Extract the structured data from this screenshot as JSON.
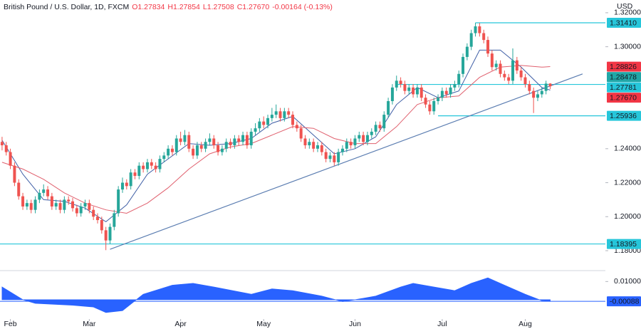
{
  "chart_data": [
    {
      "type": "candlestick",
      "symbol": "British Pound / U.S. Dollar, 1D, FXCM",
      "legend_text": {
        "open": "O1.27834",
        "high": "H1.27854",
        "low": "L1.27508",
        "close": "C1.27670",
        "change": "-0.00164 (-0.13%)"
      },
      "axis_unit": "USD",
      "up_color": "#26a69a",
      "down_color": "#ef5350",
      "xlim": [
        -0.5,
        145.3
      ],
      "ylim": [
        1.1691,
        1.3275
      ],
      "xticks": [
        {
          "value": 2,
          "label": "Feb"
        },
        {
          "value": 21,
          "label": "Mar"
        },
        {
          "value": 43,
          "label": "Apr"
        },
        {
          "value": 63,
          "label": "May"
        },
        {
          "value": 85,
          "label": "Jun"
        },
        {
          "value": 106,
          "label": "Jul"
        },
        {
          "value": 126,
          "label": "Aug"
        }
      ],
      "yticks": [
        {
          "value": 1.32,
          "label": "1.32000"
        },
        {
          "value": 1.3,
          "label": "1.30000"
        },
        {
          "value": 1.24,
          "label": "1.24000"
        },
        {
          "value": 1.22,
          "label": "1.22000"
        },
        {
          "value": 1.2,
          "label": "1.20000"
        },
        {
          "value": 1.18,
          "label": "1.18000"
        }
      ],
      "candles": [
        [
          1.244,
          1.247,
          1.239,
          1.242
        ],
        [
          1.242,
          1.244,
          1.236,
          1.238
        ],
        [
          1.238,
          1.24,
          1.228,
          1.23
        ],
        [
          1.23,
          1.232,
          1.218,
          1.22
        ],
        [
          1.22,
          1.222,
          1.21,
          1.212
        ],
        [
          1.212,
          1.214,
          1.204,
          1.206
        ],
        [
          1.206,
          1.21,
          1.204,
          1.208
        ],
        [
          1.208,
          1.21,
          1.202,
          1.204
        ],
        [
          1.204,
          1.212,
          1.202,
          1.21
        ],
        [
          1.21,
          1.216,
          1.208,
          1.214
        ],
        [
          1.214,
          1.219,
          1.212,
          1.216
        ],
        [
          1.216,
          1.218,
          1.21,
          1.212
        ],
        [
          1.212,
          1.214,
          1.204,
          1.206
        ],
        [
          1.206,
          1.21,
          1.204,
          1.208
        ],
        [
          1.208,
          1.21,
          1.202,
          1.204
        ],
        [
          1.204,
          1.212,
          1.202,
          1.21
        ],
        [
          1.21,
          1.212,
          1.207,
          1.209
        ],
        [
          1.209,
          1.211,
          1.203,
          1.205
        ],
        [
          1.205,
          1.207,
          1.2,
          1.202
        ],
        [
          1.202,
          1.208,
          1.2,
          1.206
        ],
        [
          1.206,
          1.21,
          1.204,
          1.208
        ],
        [
          1.208,
          1.21,
          1.202,
          1.204
        ],
        [
          1.204,
          1.206,
          1.198,
          1.2
        ],
        [
          1.2,
          1.202,
          1.196,
          1.198
        ],
        [
          1.198,
          1.2,
          1.19,
          1.192
        ],
        [
          1.192,
          1.194,
          1.1803,
          1.186
        ],
        [
          1.186,
          1.196,
          1.184,
          1.194
        ],
        [
          1.194,
          1.204,
          1.192,
          1.202
        ],
        [
          1.202,
          1.218,
          1.2,
          1.216
        ],
        [
          1.216,
          1.223,
          1.214,
          1.22
        ],
        [
          1.22,
          1.222,
          1.216,
          1.218
        ],
        [
          1.218,
          1.228,
          1.216,
          1.226
        ],
        [
          1.226,
          1.228,
          1.222,
          1.224
        ],
        [
          1.224,
          1.232,
          1.222,
          1.23
        ],
        [
          1.23,
          1.232,
          1.226,
          1.228
        ],
        [
          1.228,
          1.234,
          1.226,
          1.232
        ],
        [
          1.232,
          1.234,
          1.228,
          1.23
        ],
        [
          1.23,
          1.232,
          1.226,
          1.228
        ],
        [
          1.228,
          1.236,
          1.226,
          1.234
        ],
        [
          1.234,
          1.238,
          1.232,
          1.236
        ],
        [
          1.236,
          1.242,
          1.234,
          1.24
        ],
        [
          1.24,
          1.242,
          1.236,
          1.238
        ],
        [
          1.238,
          1.248,
          1.236,
          1.246
        ],
        [
          1.246,
          1.25,
          1.242,
          1.244
        ],
        [
          1.244,
          1.251,
          1.242,
          1.248
        ],
        [
          1.248,
          1.25,
          1.238,
          1.24
        ],
        [
          1.24,
          1.242,
          1.234,
          1.236
        ],
        [
          1.236,
          1.244,
          1.234,
          1.242
        ],
        [
          1.242,
          1.244,
          1.238,
          1.24
        ],
        [
          1.24,
          1.246,
          1.238,
          1.244
        ],
        [
          1.244,
          1.249,
          1.242,
          1.246
        ],
        [
          1.246,
          1.248,
          1.24,
          1.242
        ],
        [
          1.242,
          1.244,
          1.236,
          1.238
        ],
        [
          1.238,
          1.242,
          1.236,
          1.24
        ],
        [
          1.24,
          1.246,
          1.238,
          1.244
        ],
        [
          1.244,
          1.246,
          1.24,
          1.242
        ],
        [
          1.242,
          1.248,
          1.24,
          1.246
        ],
        [
          1.246,
          1.248,
          1.242,
          1.244
        ],
        [
          1.244,
          1.25,
          1.242,
          1.248
        ],
        [
          1.248,
          1.25,
          1.24,
          1.242
        ],
        [
          1.242,
          1.252,
          1.24,
          1.25
        ],
        [
          1.25,
          1.255,
          1.248,
          1.252
        ],
        [
          1.252,
          1.258,
          1.25,
          1.256
        ],
        [
          1.256,
          1.259,
          1.252,
          1.254
        ],
        [
          1.254,
          1.26,
          1.252,
          1.258
        ],
        [
          1.258,
          1.264,
          1.256,
          1.26
        ],
        [
          1.26,
          1.266,
          1.258,
          1.262
        ],
        [
          1.262,
          1.264,
          1.256,
          1.258
        ],
        [
          1.258,
          1.264,
          1.256,
          1.262
        ],
        [
          1.262,
          1.264,
          1.258,
          1.26
        ],
        [
          1.26,
          1.262,
          1.252,
          1.254
        ],
        [
          1.254,
          1.256,
          1.25,
          1.252
        ],
        [
          1.252,
          1.254,
          1.244,
          1.246
        ],
        [
          1.246,
          1.248,
          1.24,
          1.242
        ],
        [
          1.242,
          1.246,
          1.24,
          1.244
        ],
        [
          1.244,
          1.246,
          1.238,
          1.24
        ],
        [
          1.24,
          1.244,
          1.238,
          1.242
        ],
        [
          1.242,
          1.244,
          1.236,
          1.238
        ],
        [
          1.238,
          1.24,
          1.232,
          1.234
        ],
        [
          1.234,
          1.238,
          1.232,
          1.236
        ],
        [
          1.236,
          1.238,
          1.23,
          1.232
        ],
        [
          1.232,
          1.24,
          1.23,
          1.238
        ],
        [
          1.238,
          1.242,
          1.236,
          1.24
        ],
        [
          1.24,
          1.246,
          1.238,
          1.244
        ],
        [
          1.244,
          1.246,
          1.24,
          1.242
        ],
        [
          1.242,
          1.248,
          1.24,
          1.246
        ],
        [
          1.246,
          1.25,
          1.244,
          1.248
        ],
        [
          1.248,
          1.25,
          1.242,
          1.244
        ],
        [
          1.244,
          1.25,
          1.242,
          1.248
        ],
        [
          1.248,
          1.252,
          1.246,
          1.25
        ],
        [
          1.25,
          1.256,
          1.248,
          1.254
        ],
        [
          1.254,
          1.256,
          1.25,
          1.252
        ],
        [
          1.252,
          1.262,
          1.25,
          1.26
        ],
        [
          1.26,
          1.27,
          1.258,
          1.268
        ],
        [
          1.268,
          1.278,
          1.266,
          1.276
        ],
        [
          1.276,
          1.283,
          1.274,
          1.28
        ],
        [
          1.28,
          1.282,
          1.276,
          1.278
        ],
        [
          1.278,
          1.28,
          1.272,
          1.274
        ],
        [
          1.274,
          1.278,
          1.272,
          1.276
        ],
        [
          1.276,
          1.278,
          1.27,
          1.272
        ],
        [
          1.272,
          1.278,
          1.27,
          1.276
        ],
        [
          1.276,
          1.278,
          1.268,
          1.27
        ],
        [
          1.27,
          1.272,
          1.264,
          1.266
        ],
        [
          1.266,
          1.268,
          1.26,
          1.262
        ],
        [
          1.262,
          1.27,
          1.26,
          1.268
        ],
        [
          1.268,
          1.272,
          1.266,
          1.27
        ],
        [
          1.27,
          1.276,
          1.268,
          1.274
        ],
        [
          1.274,
          1.276,
          1.27,
          1.272
        ],
        [
          1.272,
          1.278,
          1.27,
          1.276
        ],
        [
          1.276,
          1.28,
          1.274,
          1.278
        ],
        [
          1.278,
          1.286,
          1.276,
          1.284
        ],
        [
          1.284,
          1.296,
          1.282,
          1.294
        ],
        [
          1.294,
          1.302,
          1.292,
          1.3
        ],
        [
          1.3,
          1.31,
          1.298,
          1.308
        ],
        [
          1.308,
          1.3141,
          1.306,
          1.312
        ],
        [
          1.312,
          1.314,
          1.306,
          1.308
        ],
        [
          1.308,
          1.31,
          1.302,
          1.304
        ],
        [
          1.304,
          1.306,
          1.294,
          1.296
        ],
        [
          1.296,
          1.298,
          1.286,
          1.288
        ],
        [
          1.288,
          1.292,
          1.286,
          1.29
        ],
        [
          1.29,
          1.292,
          1.282,
          1.284
        ],
        [
          1.284,
          1.286,
          1.28,
          1.282
        ],
        [
          1.282,
          1.284,
          1.278,
          1.28
        ],
        [
          1.28,
          1.299,
          1.278,
          1.292
        ],
        [
          1.292,
          1.294,
          1.284,
          1.286
        ],
        [
          1.286,
          1.288,
          1.28,
          1.282
        ],
        [
          1.282,
          1.284,
          1.276,
          1.278
        ],
        [
          1.278,
          1.28,
          1.272,
          1.274
        ],
        [
          1.274,
          1.276,
          1.261,
          1.27
        ],
        [
          1.27,
          1.274,
          1.268,
          1.272
        ],
        [
          1.272,
          1.276,
          1.27,
          1.274
        ],
        [
          1.274,
          1.28,
          1.272,
          1.2783
        ],
        [
          1.27834,
          1.27854,
          1.27508,
          1.2767
        ]
      ],
      "lines": [
        {
          "color": "#3f5fa6",
          "x": [
            0,
            5,
            10,
            15,
            20,
            25,
            30,
            35,
            40,
            45,
            50,
            55,
            60,
            65,
            70,
            75,
            80,
            85,
            90,
            95,
            100,
            105,
            110,
            115,
            120,
            125,
            130,
            132
          ],
          "values": [
            1.245,
            1.225,
            1.21,
            1.209,
            1.205,
            1.197,
            1.207,
            1.225,
            1.234,
            1.243,
            1.242,
            1.243,
            1.246,
            1.255,
            1.259,
            1.248,
            1.237,
            1.24,
            1.247,
            1.266,
            1.276,
            1.27,
            1.274,
            1.298,
            1.298,
            1.288,
            1.276,
            1.2745
          ]
        },
        {
          "color": "#e0606e",
          "x": [
            0,
            5,
            10,
            15,
            20,
            25,
            30,
            35,
            40,
            45,
            50,
            55,
            60,
            65,
            70,
            75,
            80,
            85,
            90,
            95,
            100,
            105,
            110,
            115,
            120,
            125,
            130,
            132
          ],
          "values": [
            1.232,
            1.228,
            1.222,
            1.214,
            1.208,
            1.204,
            1.202,
            1.208,
            1.217,
            1.228,
            1.237,
            1.241,
            1.243,
            1.248,
            1.253,
            1.252,
            1.246,
            1.243,
            1.243,
            1.253,
            1.266,
            1.27,
            1.271,
            1.282,
            1.288,
            1.289,
            1.288,
            1.2883
          ]
        }
      ],
      "trendline": {
        "color": "#5b7db1",
        "x": [
          26,
          139.8
        ],
        "values": [
          1.1808,
          1.284
        ]
      },
      "levels": [
        {
          "value": 1.3141,
          "label": "1.31410",
          "start": 114,
          "color": "#26c6da"
        },
        {
          "value": 1.27781,
          "label": "1.27781",
          "start": 95,
          "color": "#26c6da"
        },
        {
          "value": 1.25936,
          "label": "1.25936",
          "start": 105,
          "color": "#26c6da"
        },
        {
          "value": 1.18395,
          "label": "1.18395",
          "start": -0.5,
          "color": "#26c6da"
        }
      ],
      "price_labels": [
        {
          "value": 1.28826,
          "label": "1.28826",
          "color": "#f23645"
        },
        {
          "value": 1.28478,
          "label": "1.28478",
          "color": "#22a7a7"
        },
        {
          "value": 1.2767,
          "label": "1.27670",
          "color": "#f23645"
        }
      ]
    },
    {
      "type": "area",
      "color": "#2962ff",
      "xlim": [
        -0.5,
        145.3
      ],
      "ylim": [
        -0.0106,
        0.016
      ],
      "yticks": [
        {
          "value": 0.01,
          "label": "0.01000"
        }
      ],
      "x": [
        0,
        5,
        8,
        17,
        22,
        25,
        29,
        34,
        41,
        46,
        51,
        60,
        65,
        70,
        77,
        82,
        85,
        90,
        96,
        99,
        104,
        109,
        113,
        117,
        121,
        126,
        130,
        132
      ],
      "values": [
        0.007,
        0.0,
        -0.002,
        -0.003,
        -0.004,
        -0.007,
        -0.006,
        0.003,
        0.008,
        0.009,
        0.007,
        0.003,
        0.006,
        0.005,
        0.002,
        -0.001,
        0.0,
        0.002,
        0.007,
        0.009,
        0.007,
        0.005,
        0.009,
        0.012,
        0.008,
        0.003,
        -0.0005,
        -0.00088
      ],
      "last_label": {
        "value": -0.00088,
        "label": "-0.00088"
      }
    }
  ]
}
